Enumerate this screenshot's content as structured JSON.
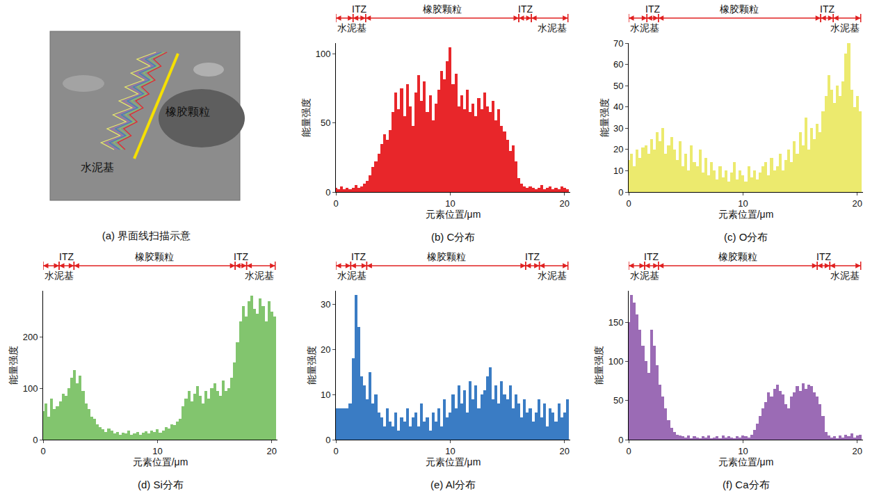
{
  "image_panel": {
    "caption": "(a) 界面线扫描示意",
    "labels": [
      "橡胶颗粒",
      "水泥基"
    ]
  },
  "chart_data": [
    {
      "type": "bar",
      "caption": "(b) C分布",
      "x_label": "元素位置/μm",
      "y_label": "能量强度",
      "color": "#e8262a",
      "x": [
        0,
        0.25,
        0.5,
        0.75,
        1,
        1.25,
        1.5,
        1.75,
        2,
        2.25,
        2.5,
        2.75,
        3,
        3.25,
        3.5,
        3.75,
        4,
        4.25,
        4.5,
        4.75,
        5,
        5.25,
        5.5,
        5.75,
        6,
        6.25,
        6.5,
        6.75,
        7,
        7.25,
        7.5,
        7.75,
        8,
        8.25,
        8.5,
        8.75,
        9,
        9.25,
        9.5,
        9.75,
        10,
        10.25,
        10.5,
        10.75,
        11,
        11.25,
        11.5,
        11.75,
        12,
        12.25,
        12.5,
        12.75,
        13,
        13.25,
        13.5,
        13.75,
        14,
        14.25,
        14.5,
        14.75,
        15,
        15.25,
        15.5,
        15.75,
        16,
        16.25,
        16.5,
        16.75,
        17,
        17.25,
        17.5,
        17.75,
        18,
        18.25,
        18.5,
        18.75,
        19,
        19.25,
        19.5,
        19.75,
        20,
        20.25
      ],
      "values": [
        3,
        2,
        4,
        2,
        3,
        2,
        3,
        5,
        3,
        4,
        6,
        8,
        12,
        18,
        22,
        28,
        35,
        42,
        38,
        45,
        58,
        72,
        60,
        75,
        55,
        78,
        62,
        48,
        72,
        85,
        66,
        80,
        58,
        70,
        52,
        64,
        74,
        88,
        82,
        95,
        105,
        78,
        86,
        62,
        70,
        60,
        74,
        58,
        64,
        55,
        68,
        60,
        72,
        62,
        58,
        66,
        52,
        60,
        48,
        44,
        38,
        30,
        34,
        22,
        10,
        6,
        4,
        3,
        4,
        3,
        2,
        3,
        5,
        2,
        3,
        4,
        2,
        3,
        2,
        4,
        3,
        2
      ],
      "xlim": [
        0,
        20.5
      ],
      "xticks": [
        0,
        10,
        20
      ],
      "ylim": [
        0,
        108
      ],
      "yticks": [
        0,
        50,
        100
      ],
      "regions": [
        {
          "label": "水泥基",
          "from": 0,
          "to": 1.5
        },
        {
          "label": "ITZ",
          "from": 1.5,
          "to": 2.6
        },
        {
          "label": "橡胶颗粒",
          "from": 2.6,
          "to": 16
        },
        {
          "label": "ITZ",
          "from": 16,
          "to": 17.1
        },
        {
          "label": "水泥基",
          "from": 17.1,
          "to": 20.3
        }
      ]
    },
    {
      "type": "bar",
      "caption": "(c) O分布",
      "x_label": "元素位置/μm",
      "y_label": "能量强度",
      "color": "#ecea6e",
      "x": [
        0,
        0.25,
        0.5,
        0.75,
        1,
        1.25,
        1.5,
        1.75,
        2,
        2.25,
        2.5,
        2.75,
        3,
        3.25,
        3.5,
        3.75,
        4,
        4.25,
        4.5,
        4.75,
        5,
        5.25,
        5.5,
        5.75,
        6,
        6.25,
        6.5,
        6.75,
        7,
        7.25,
        7.5,
        7.75,
        8,
        8.25,
        8.5,
        8.75,
        9,
        9.25,
        9.5,
        9.75,
        10,
        10.25,
        10.5,
        10.75,
        11,
        11.25,
        11.5,
        11.75,
        12,
        12.25,
        12.5,
        12.75,
        13,
        13.25,
        13.5,
        13.75,
        14,
        14.25,
        14.5,
        14.75,
        15,
        15.25,
        15.5,
        15.75,
        16,
        16.25,
        16.5,
        16.75,
        17,
        17.25,
        17.5,
        17.75,
        18,
        18.25,
        18.5,
        18.75,
        19,
        19.25,
        19.5,
        19.75,
        20,
        20.25
      ],
      "values": [
        15,
        18,
        12,
        20,
        16,
        21,
        22,
        18,
        25,
        20,
        28,
        24,
        30,
        18,
        22,
        26,
        20,
        15,
        24,
        12,
        18,
        10,
        22,
        14,
        12,
        20,
        9,
        16,
        8,
        14,
        10,
        6,
        12,
        7,
        10,
        5,
        9,
        14,
        6,
        10,
        8,
        5,
        12,
        7,
        10,
        6,
        9,
        12,
        14,
        8,
        16,
        10,
        12,
        18,
        10,
        15,
        20,
        14,
        24,
        18,
        28,
        22,
        35,
        20,
        30,
        25,
        32,
        28,
        38,
        45,
        55,
        48,
        42,
        50,
        45,
        52,
        65,
        70,
        48,
        40,
        45,
        38
      ],
      "xlim": [
        0,
        20.5
      ],
      "xticks": [
        0,
        10,
        20
      ],
      "ylim": [
        0,
        70
      ],
      "yticks": [
        0,
        10,
        20,
        30,
        40,
        50,
        60,
        70
      ],
      "regions": [
        {
          "label": "水泥基",
          "from": 0,
          "to": 1.6
        },
        {
          "label": "ITZ",
          "from": 1.6,
          "to": 2.6
        },
        {
          "label": "橡胶颗粒",
          "from": 2.6,
          "to": 16.8
        },
        {
          "label": "ITZ",
          "from": 16.8,
          "to": 17.9
        },
        {
          "label": "水泥基",
          "from": 17.9,
          "to": 20.3
        }
      ]
    },
    {
      "type": "bar",
      "caption": "(d) Si分布",
      "x_label": "元素位置/μm",
      "y_label": "能量强度",
      "color": "#82c56e",
      "x": [
        0,
        0.25,
        0.5,
        0.75,
        1,
        1.25,
        1.5,
        1.75,
        2,
        2.25,
        2.5,
        2.75,
        3,
        3.25,
        3.5,
        3.75,
        4,
        4.25,
        4.5,
        4.75,
        5,
        5.25,
        5.5,
        5.75,
        6,
        6.25,
        6.5,
        6.75,
        7,
        7.25,
        7.5,
        7.75,
        8,
        8.25,
        8.5,
        8.75,
        9,
        9.25,
        9.5,
        9.75,
        10,
        10.25,
        10.5,
        10.75,
        11,
        11.25,
        11.5,
        11.75,
        12,
        12.25,
        12.5,
        12.75,
        13,
        13.25,
        13.5,
        13.75,
        14,
        14.25,
        14.5,
        14.75,
        15,
        15.25,
        15.5,
        15.75,
        16,
        16.25,
        16.5,
        16.75,
        17,
        17.25,
        17.5,
        17.75,
        18,
        18.25,
        18.5,
        18.75,
        19,
        19.25,
        19.5,
        19.75,
        20,
        20.25
      ],
      "values": [
        55,
        70,
        45,
        80,
        60,
        65,
        75,
        90,
        85,
        100,
        120,
        135,
        110,
        125,
        95,
        70,
        60,
        45,
        40,
        30,
        25,
        20,
        15,
        22,
        18,
        12,
        15,
        10,
        14,
        12,
        18,
        10,
        12,
        15,
        10,
        14,
        16,
        12,
        18,
        15,
        20,
        14,
        18,
        25,
        22,
        30,
        28,
        35,
        40,
        65,
        80,
        95,
        75,
        90,
        105,
        85,
        70,
        95,
        80,
        100,
        110,
        95,
        85,
        115,
        95,
        100,
        120,
        150,
        190,
        230,
        260,
        240,
        270,
        280,
        255,
        245,
        275,
        260,
        230,
        270,
        250,
        240
      ],
      "xlim": [
        0,
        20.5
      ],
      "xticks": [
        0,
        10,
        20
      ],
      "ylim": [
        0,
        290
      ],
      "yticks": [
        0,
        100,
        200
      ],
      "regions": [
        {
          "label": "水泥基",
          "from": 0,
          "to": 1.4
        },
        {
          "label": "ITZ",
          "from": 1.4,
          "to": 2.7
        },
        {
          "label": "橡胶颗粒",
          "from": 2.7,
          "to": 16.8
        },
        {
          "label": "ITZ",
          "from": 16.8,
          "to": 17.8
        },
        {
          "label": "水泥基",
          "from": 17.8,
          "to": 20.3
        }
      ]
    },
    {
      "type": "bar",
      "caption": "(e) Al分布",
      "x_label": "元素位置/μm",
      "y_label": "能量强度",
      "color": "#3a7cc4",
      "x": [
        0,
        0.25,
        0.5,
        0.75,
        1,
        1.25,
        1.5,
        1.75,
        2,
        2.25,
        2.5,
        2.75,
        3,
        3.25,
        3.5,
        3.75,
        4,
        4.25,
        4.5,
        4.75,
        5,
        5.25,
        5.5,
        5.75,
        6,
        6.25,
        6.5,
        6.75,
        7,
        7.25,
        7.5,
        7.75,
        8,
        8.25,
        8.5,
        8.75,
        9,
        9.25,
        9.5,
        9.75,
        10,
        10.25,
        10.5,
        10.75,
        11,
        11.25,
        11.5,
        11.75,
        12,
        12.25,
        12.5,
        12.75,
        13,
        13.25,
        13.5,
        13.75,
        14,
        14.25,
        14.5,
        14.75,
        15,
        15.25,
        15.5,
        15.75,
        16,
        16.25,
        16.5,
        16.75,
        17,
        17.25,
        17.5,
        17.75,
        18,
        18.25,
        18.5,
        18.75,
        19,
        19.25,
        19.5,
        19.75,
        20,
        20.25
      ],
      "values": [
        7,
        7,
        7,
        7,
        7,
        8,
        18,
        32,
        25,
        14,
        12,
        9,
        15,
        8,
        10,
        6,
        5,
        3,
        7,
        4,
        3,
        6,
        2,
        5,
        4,
        7,
        3,
        5,
        6,
        3,
        8,
        4,
        5,
        2,
        6,
        4,
        7,
        3,
        9,
        5,
        6,
        10,
        7,
        12,
        8,
        11,
        6,
        13,
        9,
        12,
        7,
        10,
        11,
        14,
        16,
        9,
        12,
        8,
        13,
        10,
        9,
        12,
        7,
        10,
        8,
        5,
        9,
        6,
        7,
        4,
        6,
        9,
        5,
        8,
        3,
        7,
        6,
        4,
        8,
        5,
        6,
        9
      ],
      "xlim": [
        0,
        20.5
      ],
      "xticks": [
        0,
        10,
        20
      ],
      "ylim": [
        0,
        33
      ],
      "yticks": [
        0,
        10,
        20,
        30
      ],
      "regions": [
        {
          "label": "水泥基",
          "from": 0,
          "to": 1.3
        },
        {
          "label": "ITZ",
          "from": 1.3,
          "to": 2.7
        },
        {
          "label": "橡胶颗粒",
          "from": 2.7,
          "to": 16.6
        },
        {
          "label": "ITZ",
          "from": 16.6,
          "to": 17.8
        },
        {
          "label": "水泥基",
          "from": 17.8,
          "to": 20.3
        }
      ]
    },
    {
      "type": "bar",
      "caption": "(f) Ca分布",
      "x_label": "元素位置/μm",
      "y_label": "能量强度",
      "color": "#9b6bb5",
      "x": [
        0,
        0.25,
        0.5,
        0.75,
        1,
        1.25,
        1.5,
        1.75,
        2,
        2.25,
        2.5,
        2.75,
        3,
        3.25,
        3.5,
        3.75,
        4,
        4.25,
        4.5,
        4.75,
        5,
        5.25,
        5.5,
        5.75,
        6,
        6.25,
        6.5,
        6.75,
        7,
        7.25,
        7.5,
        7.75,
        8,
        8.25,
        8.5,
        8.75,
        9,
        9.25,
        9.5,
        9.75,
        10,
        10.25,
        10.5,
        10.75,
        11,
        11.25,
        11.5,
        11.75,
        12,
        12.25,
        12.5,
        12.75,
        13,
        13.25,
        13.5,
        13.75,
        14,
        14.25,
        14.5,
        14.75,
        15,
        15.25,
        15.5,
        15.75,
        16,
        16.25,
        16.5,
        16.75,
        17,
        17.25,
        17.5,
        17.75,
        18,
        18.25,
        18.5,
        18.75,
        19,
        19.25,
        19.5,
        19.75,
        20,
        20.25
      ],
      "values": [
        150,
        185,
        175,
        160,
        140,
        120,
        100,
        85,
        140,
        120,
        95,
        70,
        55,
        40,
        25,
        15,
        10,
        6,
        5,
        4,
        3,
        5,
        2,
        4,
        3,
        2,
        4,
        3,
        5,
        2,
        3,
        4,
        2,
        5,
        3,
        4,
        3,
        2,
        4,
        3,
        5,
        4,
        3,
        6,
        12,
        20,
        30,
        40,
        48,
        60,
        55,
        65,
        70,
        62,
        58,
        45,
        40,
        55,
        60,
        68,
        62,
        72,
        65,
        70,
        68,
        60,
        55,
        45,
        30,
        10,
        5,
        3,
        4,
        2,
        5,
        3,
        6,
        4,
        8,
        3,
        5,
        6
      ],
      "xlim": [
        0,
        20.5
      ],
      "xticks": [
        0,
        10,
        20
      ],
      "ylim": [
        0,
        190
      ],
      "yticks": [
        0,
        50,
        100,
        150
      ],
      "regions": [
        {
          "label": "水泥基",
          "from": 0,
          "to": 1.4
        },
        {
          "label": "ITZ",
          "from": 1.4,
          "to": 2.6
        },
        {
          "label": "橡胶颗粒",
          "from": 2.6,
          "to": 16.5
        },
        {
          "label": "ITZ",
          "from": 16.5,
          "to": 17.6
        },
        {
          "label": "水泥基",
          "from": 17.6,
          "to": 20.3
        }
      ]
    }
  ]
}
